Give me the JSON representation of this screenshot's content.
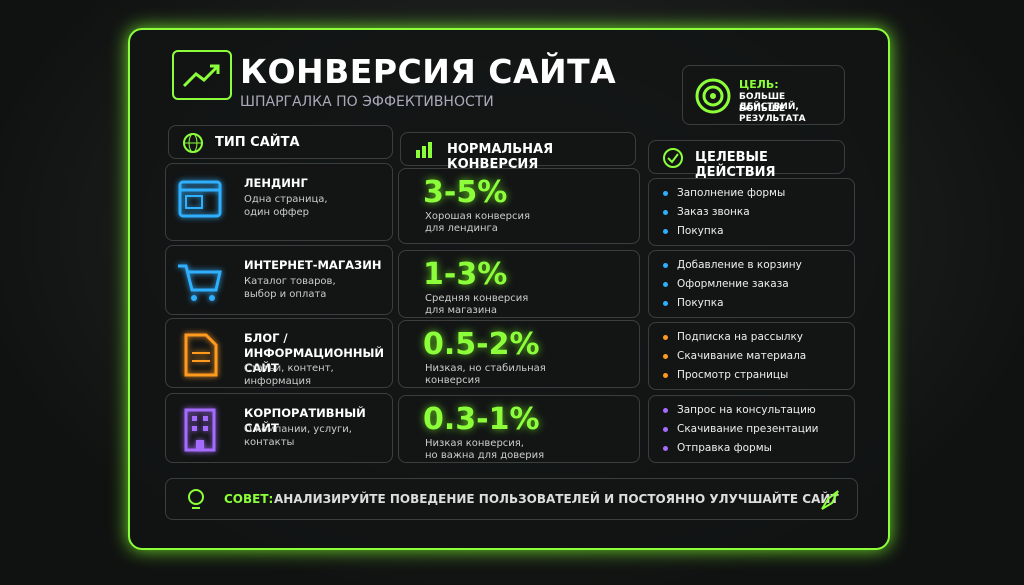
{
  "header": {
    "title": "КОНВЕРСИЯ САЙТА",
    "subtitle": "ШПАРГАЛКА ПО ЭФФЕКТИВНОСТИ"
  },
  "goal": {
    "label": "ЦЕЛЬ:",
    "lines": [
      "БОЛЬШЕ ДЕЙСТВИЙ,",
      "БОЛЬШЕ РЕЗУЛЬТАТА"
    ]
  },
  "table": {
    "columns": [
      "ТИП САЙТА",
      "НОРМАЛЬНАЯ КОНВЕРСИЯ",
      "ЦЕЛЕВЫЕ ДЕЙСТВИЯ"
    ],
    "rows": [
      {
        "name": "ЛЕНДИНГ",
        "description": [
          "Одна страница,",
          "один оффер"
        ],
        "conversion": "3-5%",
        "note": [
          "Хорошая конверсия",
          "для лендинга"
        ],
        "actions": [
          "Заполнение формы",
          "Заказ звонка",
          "Покупка"
        ],
        "color": "#2fb0ff"
      },
      {
        "name": "ИНТЕРНЕТ-МАГАЗИН",
        "description": [
          "Каталог товаров,",
          "выбор и оплата"
        ],
        "conversion": "1-3%",
        "note": [
          "Средняя конверсия",
          "для магазина"
        ],
        "actions": [
          "Добавление в корзину",
          "Оформление заказа",
          "Покупка"
        ],
        "color": "#2fb0ff"
      },
      {
        "name": "БЛОГ / ИНФОРМАЦИОННЫЙ САЙТ",
        "description": [
          "Статьи, контент,",
          "информация"
        ],
        "conversion": "0.5-2%",
        "note": [
          "Низкая, но стабильная",
          "конверсия"
        ],
        "actions": [
          "Подписка на рассылку",
          "Скачивание материала",
          "Просмотр страницы"
        ],
        "color": "#ff9a1f"
      },
      {
        "name": "КОРПОРАТИВНЫЙ САЙТ",
        "description": [
          "О компании, услуги,",
          "контакты"
        ],
        "conversion": "0.3-1%",
        "note": [
          "Низкая конверсия,",
          "но важна для доверия"
        ],
        "actions": [
          "Запрос на консультацию",
          "Скачивание презентации",
          "Отправка формы"
        ],
        "color": "#a66bff"
      }
    ]
  },
  "tip": {
    "label": "СОВЕТ:",
    "text": "АНАЛИЗИРУЙТЕ ПОВЕДЕНИЕ ПОЛЬЗОВАТЕЛЕЙ И ПОСТОЯННО УЛУЧШАЙТЕ САЙТ"
  }
}
